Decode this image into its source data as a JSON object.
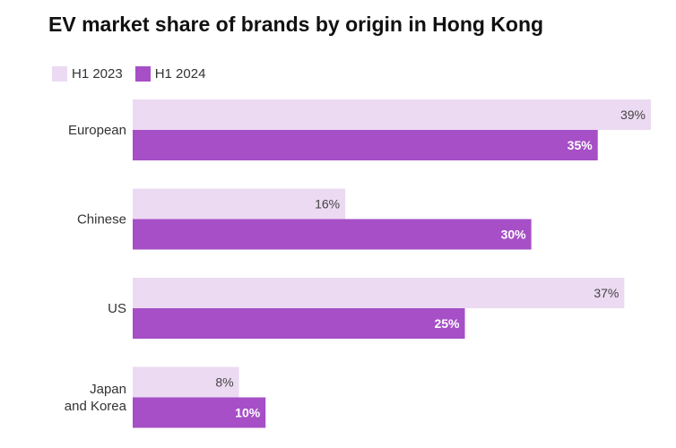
{
  "chart_data": {
    "type": "bar",
    "orientation": "horizontal",
    "title": "EV market share of brands by origin in Hong Kong",
    "categories": [
      "European",
      "Chinese",
      "US",
      "Japan\nand Korea"
    ],
    "series": [
      {
        "name": "H1 2023",
        "values": [
          39,
          16,
          37,
          8
        ],
        "color": "#ecdaf2"
      },
      {
        "name": "H1 2024",
        "values": [
          35,
          30,
          25,
          10
        ],
        "color": "#a64fc6"
      }
    ],
    "value_suffix": "%",
    "xlim": [
      0,
      40
    ],
    "grid": false,
    "legend": "top-left"
  }
}
